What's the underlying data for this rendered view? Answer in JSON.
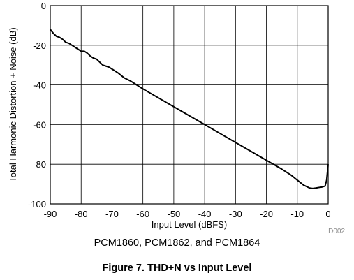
{
  "chart_data": {
    "type": "line",
    "xlabel": "Input Level (dBFS)",
    "ylabel": "Total Harmonic Distortion + Noise (dB)",
    "xlim": [
      -90,
      0
    ],
    "ylim": [
      -100,
      0
    ],
    "x_ticks": [
      "-90",
      "-80",
      "-70",
      "-60",
      "-50",
      "-40",
      "-30",
      "-20",
      "-10",
      "0"
    ],
    "y_ticks": [
      "0",
      "-20",
      "-40",
      "-60",
      "-80",
      "-100"
    ],
    "grid": true,
    "series": [
      {
        "x": [
          -90,
          -89,
          -88,
          -87,
          -86,
          -85,
          -84,
          -83,
          -82,
          -81,
          -80,
          -79,
          -78,
          -77,
          -76,
          -75,
          -74,
          -73,
          -72,
          -71,
          -70,
          -68,
          -66,
          -64,
          -62,
          -60,
          -55,
          -50,
          -45,
          -40,
          -35,
          -30,
          -25,
          -20,
          -15,
          -12,
          -10,
          -8,
          -6,
          -5,
          -4,
          -3,
          -2,
          -1,
          -0.5,
          0
        ],
        "y": [
          -12,
          -14,
          -15.5,
          -16,
          -17,
          -18.5,
          -19,
          -20,
          -21,
          -22,
          -23,
          -23,
          -24,
          -25.5,
          -26.5,
          -27,
          -28.5,
          -30,
          -30.5,
          -31,
          -32,
          -34,
          -36.5,
          -38,
          -40,
          -42,
          -46.5,
          -51,
          -55.5,
          -60,
          -64.5,
          -69,
          -73.5,
          -78,
          -82.5,
          -85.5,
          -88,
          -90.5,
          -92,
          -92.2,
          -92,
          -91.7,
          -91.5,
          -91,
          -88,
          -80
        ]
      }
    ]
  },
  "figure_id": "D002",
  "subtitle": "PCM1860, PCM1862, and PCM1864",
  "caption": "Figure 7. THD+N vs Input Level"
}
